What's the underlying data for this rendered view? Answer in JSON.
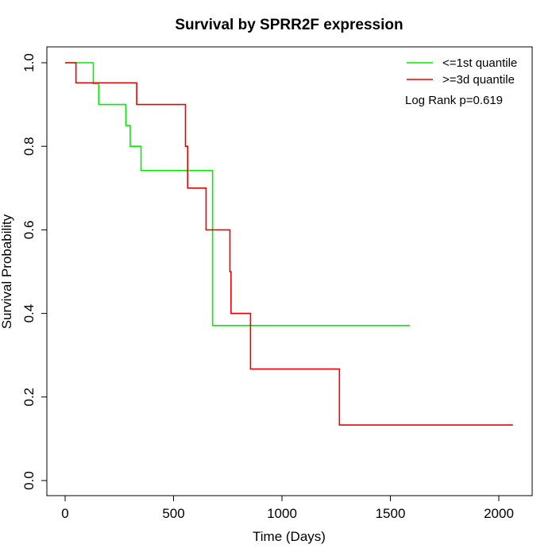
{
  "chart_data": {
    "type": "line",
    "step": true,
    "title": "Survival by SPRR2F expression",
    "xlabel": "Time (Days)",
    "ylabel": "Survival Probability",
    "xlim": [
      0,
      2070
    ],
    "ylim": [
      0,
      1
    ],
    "xticks": [
      0,
      500,
      1000,
      1500,
      2000
    ],
    "yticks": [
      0.0,
      0.2,
      0.4,
      0.6,
      0.8,
      1.0
    ],
    "xtick_labels": [
      "0",
      "500",
      "1000",
      "1500",
      "2000"
    ],
    "ytick_labels": [
      "0.0",
      "0.2",
      "0.4",
      "0.6",
      "0.8",
      "1.0"
    ],
    "grid": false,
    "legend_position": "top-right",
    "annotation": "Log Rank p=0.619",
    "series": [
      {
        "name": "<=1st quantile",
        "color": "#00ee00",
        "x": [
          0,
          130,
          155,
          280,
          300,
          350,
          680,
          1590
        ],
        "y": [
          1.0,
          0.95,
          0.9,
          0.85,
          0.8,
          0.742,
          0.371,
          0.371
        ]
      },
      {
        "name": ">=3d quantile",
        "color": "#ee0000",
        "x": [
          0,
          50,
          330,
          555,
          565,
          650,
          760,
          765,
          855,
          1265,
          2065
        ],
        "y": [
          1.0,
          0.952,
          0.9,
          0.8,
          0.7,
          0.6,
          0.5,
          0.4,
          0.267,
          0.133,
          0.133
        ]
      }
    ]
  }
}
